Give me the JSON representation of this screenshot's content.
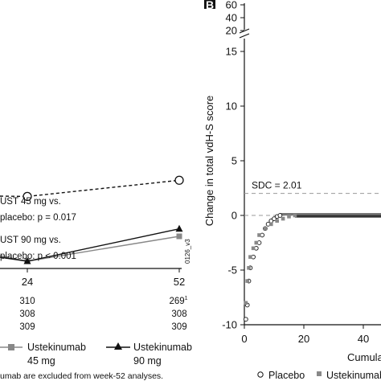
{
  "panel_b_label": "B",
  "right_ylabel": "Change in total vdH-S score",
  "right_xlabel": "Cumula",
  "sdc_label": "SDC = 2.01",
  "left_ann1_line1": "UST 45 mg vs.",
  "left_ann1_line2": "placebo: p = 0.017",
  "left_ann2_line1": "UST 90 mg vs.",
  "left_ann2_line2": "placebo: p < 0.001",
  "watermark": "0126_v3",
  "left_legend": [
    {
      "name": "Ustekinumab",
      "sub": "45 mg"
    },
    {
      "name": "Ustekinumab",
      "sub": "90 mg"
    }
  ],
  "bottom_legend": [
    "Placebo",
    "Ustekinumab"
  ],
  "footnote": "umab are excluded from week-52 analyses.",
  "left_table": [
    {
      "week": "24",
      "n": [
        "310",
        "308",
        "309"
      ]
    },
    {
      "week": "52",
      "n": [
        "269",
        "308",
        "309"
      ],
      "n0_sup": "1"
    }
  ],
  "colors": {
    "placebo": "#111111",
    "ust45": "#888888",
    "ust90": "#111111",
    "sdc": "#999999"
  },
  "chart_data": [
    {
      "type": "line",
      "x_ticks": [
        "24",
        "52"
      ],
      "x": [
        0,
        24,
        52
      ],
      "series": [
        {
          "marker": "open-circle",
          "style": "dashed",
          "values": [
            null,
            3.2,
            4.5
          ]
        },
        {
          "name": "Ustekinumab 45 mg",
          "marker": "square",
          "values": [
            null,
            -2.0,
            0.0
          ]
        },
        {
          "name": "Ustekinumab 90 mg",
          "marker": "triangle",
          "values": [
            null,
            -2.0,
            0.6
          ]
        }
      ]
    },
    {
      "type": "scatter",
      "ylabel": "Change in total vdH-S score",
      "y_ticks_main": [
        -10,
        -5,
        0,
        5,
        10,
        15
      ],
      "y_ticks_break": [
        20,
        40,
        60
      ],
      "ylim": [
        -10,
        17
      ],
      "x_ticks": [
        0,
        20,
        40
      ],
      "xlim": [
        0,
        47
      ],
      "sdc": 2.01,
      "series": [
        {
          "name": "Placebo",
          "marker": "open-circle",
          "points": [
            [
              0.5,
              -9.5
            ],
            [
              1,
              -8.2
            ],
            [
              1.5,
              -6.0
            ],
            [
              2,
              -4.8
            ],
            [
              3,
              -3.8
            ],
            [
              4,
              -3.0
            ],
            [
              5,
              -2.5
            ],
            [
              6,
              -1.8
            ],
            [
              7,
              -1.2
            ],
            [
              8,
              -0.8
            ],
            [
              9,
              -0.5
            ],
            [
              10,
              -0.3
            ],
            [
              11,
              -0.1
            ],
            [
              12,
              0
            ]
          ]
        },
        {
          "name": "Ustekinumab",
          "marker": "square",
          "points": [
            [
              0.5,
              -8.0
            ],
            [
              1,
              -6.0
            ],
            [
              1.5,
              -4.8
            ],
            [
              2,
              -3.8
            ],
            [
              3,
              -3.0
            ],
            [
              4,
              -2.5
            ],
            [
              5,
              -1.8
            ],
            [
              7,
              -1.2
            ],
            [
              9,
              -0.8
            ],
            [
              11,
              -0.5
            ],
            [
              13,
              -0.3
            ],
            [
              15,
              -0.1
            ],
            [
              17,
              0
            ]
          ]
        }
      ]
    }
  ]
}
